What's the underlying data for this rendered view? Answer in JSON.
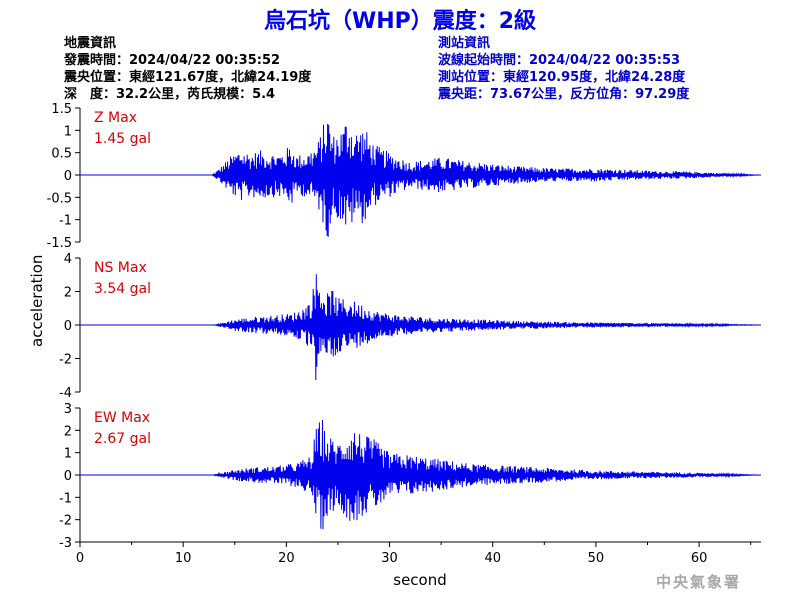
{
  "title": "烏石坑（WHP）震度：2級",
  "quake_info": {
    "header": "地震資訊",
    "time": "發震時間：2024/04/22 00:35:52",
    "epicenter": "震央位置：東經121.67度，北緯24.19度",
    "depth_magnitude": "深　度：32.2公里，芮氏規模：5.4"
  },
  "station_info": {
    "header": "測站資訊",
    "wave_start": "波線起始時間：2024/04/22 00:35:53",
    "location": "測站位置：東經120.95度，北緯24.28度",
    "distance": "震央距：73.67公里，反方位角：97.29度"
  },
  "agency": "中央氣象署",
  "colors": {
    "trace": "#0000ee",
    "max_label": "#dd0000",
    "title": "#0000ee",
    "station_info": "#0000cc"
  },
  "chart_data": {
    "type": "line",
    "xlabel": "second",
    "ylabel": "acceleration",
    "xlim": [
      0,
      66
    ],
    "x_ticks": [
      "0",
      "10",
      "20",
      "30",
      "40",
      "50",
      "60"
    ],
    "panels": [
      {
        "name": "Z",
        "max_label": "Z Max",
        "max_value": "1.45 gal",
        "ylim": [
          -1.5,
          1.5
        ],
        "y_ticks": [
          "1.5",
          "1",
          "0.5",
          "0",
          "-0.5",
          "-1",
          "-1.5"
        ],
        "onset_s": 12.8,
        "waveform": [
          [
            12.8,
            0.0
          ],
          [
            13.5,
            0.15
          ],
          [
            14.5,
            -0.4
          ],
          [
            15.5,
            0.6
          ],
          [
            16.5,
            -0.5
          ],
          [
            17.5,
            0.55
          ],
          [
            18.5,
            -0.5
          ],
          [
            19.5,
            0.5
          ],
          [
            20.5,
            -0.7
          ],
          [
            21.0,
            0.45
          ],
          [
            22.0,
            -0.5
          ],
          [
            23.0,
            0.7
          ],
          [
            24.0,
            1.45
          ],
          [
            24.5,
            -0.9
          ],
          [
            25.5,
            1.1
          ],
          [
            26.0,
            1.45
          ],
          [
            26.5,
            -1.0
          ],
          [
            27.5,
            1.1
          ],
          [
            28.5,
            -0.7
          ],
          [
            30.0,
            0.5
          ],
          [
            32.0,
            -0.3
          ],
          [
            35.0,
            0.4
          ],
          [
            38.0,
            -0.3
          ],
          [
            42.0,
            0.2
          ],
          [
            46.0,
            -0.15
          ],
          [
            50.0,
            0.15
          ],
          [
            55.0,
            -0.1
          ],
          [
            60.0,
            0.07
          ],
          [
            66.0,
            0.0
          ]
        ]
      },
      {
        "name": "NS",
        "max_label": "NS Max",
        "max_value": "3.54 gal",
        "ylim": [
          -4,
          4
        ],
        "y_ticks": [
          "4",
          "2",
          "0",
          "-2",
          "-4"
        ],
        "onset_s": 13.0,
        "waveform": [
          [
            13.0,
            0.0
          ],
          [
            15.0,
            0.35
          ],
          [
            17.0,
            -0.5
          ],
          [
            19.0,
            0.6
          ],
          [
            20.5,
            -0.7
          ],
          [
            21.5,
            1.0
          ],
          [
            22.5,
            -1.6
          ],
          [
            22.8,
            3.54
          ],
          [
            23.0,
            -3.2
          ],
          [
            23.8,
            1.8
          ],
          [
            24.5,
            -2.2
          ],
          [
            25.0,
            1.6
          ],
          [
            26.0,
            -1.6
          ],
          [
            27.5,
            1.2
          ],
          [
            29.0,
            -0.8
          ],
          [
            31.0,
            0.6
          ],
          [
            34.0,
            -0.45
          ],
          [
            38.0,
            0.35
          ],
          [
            42.0,
            -0.25
          ],
          [
            46.0,
            0.2
          ],
          [
            50.0,
            -0.15
          ],
          [
            55.0,
            0.12
          ],
          [
            60.0,
            -0.08
          ],
          [
            66.0,
            0.0
          ]
        ]
      },
      {
        "name": "EW",
        "max_label": "EW Max",
        "max_value": "2.67 gal",
        "ylim": [
          -3,
          3
        ],
        "y_ticks": [
          "3",
          "2",
          "1",
          "0",
          "-1",
          "-2",
          "-3"
        ],
        "onset_s": 12.9,
        "waveform": [
          [
            12.9,
            0.0
          ],
          [
            15.0,
            0.25
          ],
          [
            17.0,
            -0.35
          ],
          [
            19.0,
            0.4
          ],
          [
            21.0,
            -0.55
          ],
          [
            22.5,
            0.9
          ],
          [
            22.8,
            -2.0
          ],
          [
            23.0,
            2.2
          ],
          [
            23.4,
            -2.67
          ],
          [
            24.0,
            1.8
          ],
          [
            25.0,
            -1.5
          ],
          [
            26.0,
            2.0
          ],
          [
            26.5,
            -2.2
          ],
          [
            27.5,
            1.8
          ],
          [
            28.5,
            -1.6
          ],
          [
            30.0,
            1.0
          ],
          [
            32.0,
            -0.9
          ],
          [
            35.0,
            0.7
          ],
          [
            38.0,
            -0.5
          ],
          [
            42.0,
            0.4
          ],
          [
            46.0,
            -0.3
          ],
          [
            50.0,
            0.2
          ],
          [
            55.0,
            -0.15
          ],
          [
            60.0,
            0.1
          ],
          [
            66.0,
            0.0
          ]
        ]
      }
    ]
  }
}
